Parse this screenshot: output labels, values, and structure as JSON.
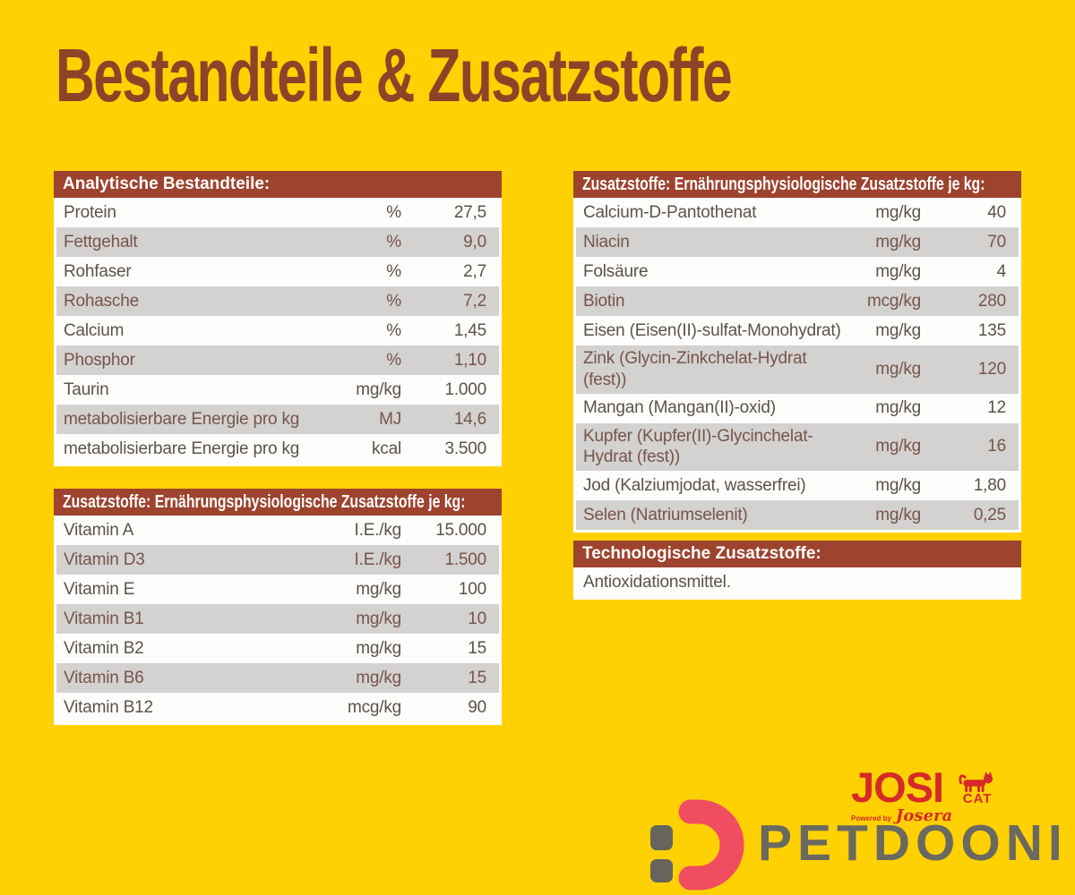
{
  "title": "Bestandteile & Zusatzstoffe",
  "colors": {
    "bg": "#FFD103",
    "bar": "#9D432E",
    "title": "#8E4227",
    "row-white": "#FDFDFB",
    "row-gray": "#D3D2D0",
    "text-dark": "#5B524B",
    "text-warm": "#77544B",
    "josi-red": "#D62A28",
    "pet-pink": "#F14D60",
    "pet-gray": "#6B695F"
  },
  "tables": {
    "analytics": {
      "header": "Analytische Bestandteile:",
      "rows": [
        {
          "label": "Protein",
          "unit": "%",
          "value": "27,5"
        },
        {
          "label": "Fettgehalt",
          "unit": "%",
          "value": "9,0"
        },
        {
          "label": "Rohfaser",
          "unit": "%",
          "value": "2,7"
        },
        {
          "label": "Rohasche",
          "unit": "%",
          "value": "7,2"
        },
        {
          "label": "Calcium",
          "unit": "%",
          "value": "1,45"
        },
        {
          "label": "Phosphor",
          "unit": "%",
          "value": "1,10"
        },
        {
          "label": "Taurin",
          "unit": "mg/kg",
          "value": "1.000"
        },
        {
          "label": "metabolisierbare Energie pro kg",
          "unit": "MJ",
          "value": "14,6"
        },
        {
          "label": "metabolisierbare Energie pro kg",
          "unit": "kcal",
          "value": "3.500"
        }
      ]
    },
    "vitamins": {
      "header": "Zusatzstoffe: Ernährungsphysiologische Zusatzstoffe je kg:",
      "rows": [
        {
          "label": "Vitamin A",
          "unit": "I.E./kg",
          "value": "15.000"
        },
        {
          "label": "Vitamin D3",
          "unit": "I.E./kg",
          "value": "1.500"
        },
        {
          "label": "Vitamin E",
          "unit": "mg/kg",
          "value": "100"
        },
        {
          "label": "Vitamin B1",
          "unit": "mg/kg",
          "value": "10"
        },
        {
          "label": "Vitamin B2",
          "unit": "mg/kg",
          "value": "15"
        },
        {
          "label": "Vitamin B6",
          "unit": "mg/kg",
          "value": "15"
        },
        {
          "label": "Vitamin B12",
          "unit": "mcg/kg",
          "value": "90"
        }
      ]
    },
    "minerals": {
      "header": "Zusatzstoffe: Ernährungsphysiologische Zusatzstoffe je kg:",
      "rows": [
        {
          "label": "Calcium-D-Pantothenat",
          "unit": "mg/kg",
          "value": "40"
        },
        {
          "label": "Niacin",
          "unit": "mg/kg",
          "value": "70"
        },
        {
          "label": "Folsäure",
          "unit": "mg/kg",
          "value": "4"
        },
        {
          "label": "Biotin",
          "unit": "mcg/kg",
          "value": "280"
        },
        {
          "label": "Eisen (Eisen(II)-sulfat-Monohydrat)",
          "unit": "mg/kg",
          "value": "135"
        },
        {
          "label": "Zink (Glycin-Zinkchelat-Hydrat (fest))",
          "unit": "mg/kg",
          "value": "120"
        },
        {
          "label": "Mangan (Mangan(II)-oxid)",
          "unit": "mg/kg",
          "value": "12"
        },
        {
          "label": "Kupfer (Kupfer(II)-Glycinchelat-Hydrat (fest))",
          "unit": "mg/kg",
          "value": "16"
        },
        {
          "label": "Jod (Kalziumjodat, wasserfrei)",
          "unit": "mg/kg",
          "value": "1,80"
        },
        {
          "label": "Selen (Natriumselenit)",
          "unit": "mg/kg",
          "value": "0,25"
        }
      ]
    },
    "technological": {
      "header": "Technologische Zusatzstoffe:",
      "rows": [
        {
          "label": "Antioxidationsmittel.",
          "unit": "",
          "value": ""
        }
      ]
    }
  },
  "branding": {
    "josicat": {
      "brand": "JOSI",
      "sub": "CAT",
      "powered_by": "Powered by",
      "manufacturer": "Josera"
    },
    "petdooni": {
      "name": "PETDOONI"
    }
  }
}
